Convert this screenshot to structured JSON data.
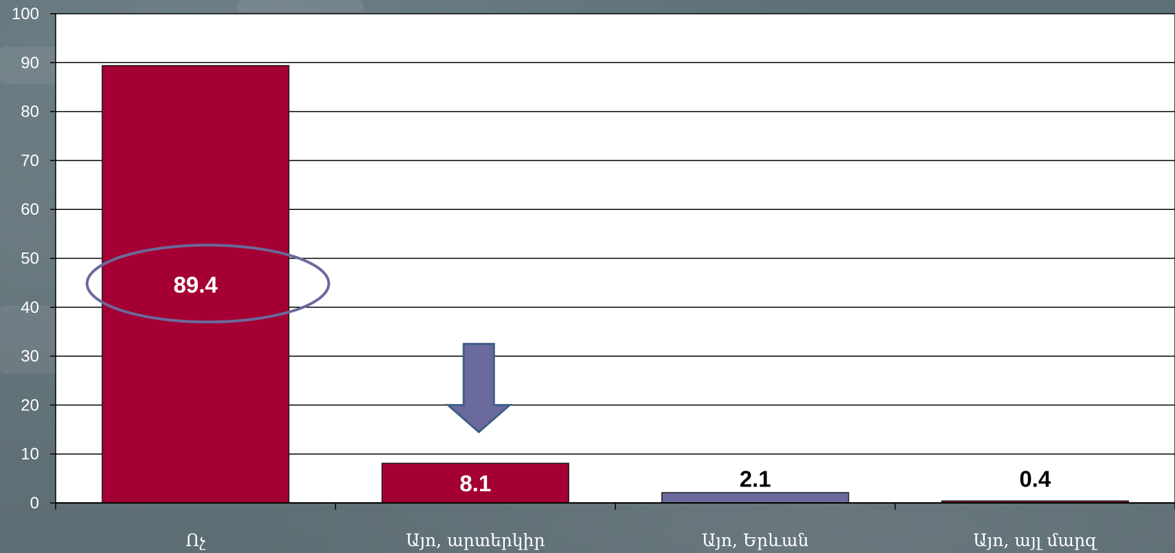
{
  "chart_data": {
    "type": "bar",
    "categories": [
      "Ոչ",
      "Այո, արտերկիր",
      "Այո, Երևան",
      "Այո, այլ մարզ"
    ],
    "values": [
      89.4,
      8.1,
      2.1,
      0.4
    ],
    "data_labels": [
      "89.4",
      "8.1",
      "2.1",
      "0.4"
    ],
    "bar_colors": [
      "#a50034",
      "#a50034",
      "#6a6a9c",
      "#8b0a2a"
    ],
    "label_colors": [
      "#ffffff",
      "#ffffff",
      "#000000",
      "#000000"
    ],
    "ylim": [
      0,
      100
    ],
    "yticks": [
      0,
      10,
      20,
      30,
      40,
      50,
      60,
      70,
      80,
      90,
      100
    ],
    "ytick_labels": [
      "0",
      "10",
      "20",
      "30",
      "40",
      "50",
      "60",
      "70",
      "80",
      "90",
      "100"
    ],
    "grid": true,
    "title": "",
    "xlabel": "",
    "ylabel": "",
    "annotations": [
      {
        "type": "ellipse",
        "target_category": "Ոչ",
        "color": "#6a6a9c"
      },
      {
        "type": "down-arrow",
        "target_category": "Այո, արտերկիր",
        "color": "#6a6a9c"
      }
    ]
  },
  "colors": {
    "plot_background": "#ffffff",
    "gridline": "#000000",
    "page_background": "#62737a",
    "annotation": "#6a6a9c"
  }
}
